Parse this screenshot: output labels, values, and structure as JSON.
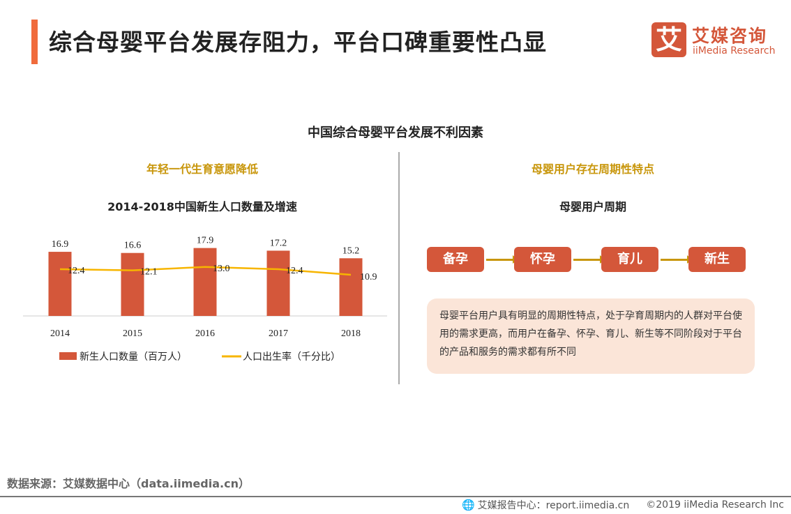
{
  "header": {
    "title": "综合母婴平台发展存阻力，平台口碑重要性凸显",
    "logo_glyph": "艾",
    "logo_cn": "艾媒咨询",
    "logo_en": "iiMedia Research",
    "accent_color": "#f06b3c"
  },
  "main_title": "中国综合母婴平台发展不利因素",
  "left": {
    "subtitle": "年轻一代生育意愿降低",
    "chart_title": "2014-2018中国新生人口数量及增速"
  },
  "right": {
    "subtitle": "母婴用户存在周期性特点",
    "cycle_title": "母婴用户周期",
    "steps": [
      "备孕",
      "怀孕",
      "育儿",
      "新生"
    ],
    "description": "母婴平台用户具有明显的周期性特点，处于孕育周期内的人群对平台使用的需求更高，而用户在备孕、怀孕、育儿、新生等不同阶段对于平台的产品和服务的需求都有所不同"
  },
  "chart_data": {
    "type": "bar+line",
    "categories": [
      "2014",
      "2015",
      "2016",
      "2017",
      "2018"
    ],
    "series": [
      {
        "name": "新生人口数量（百万人）",
        "type": "bar",
        "color": "#d4573a",
        "values": [
          16.9,
          16.6,
          17.9,
          17.2,
          15.2
        ]
      },
      {
        "name": "人口出生率（千分比）",
        "type": "line",
        "color": "#f7b500",
        "values": [
          12.4,
          12.1,
          13.0,
          12.4,
          10.9
        ]
      }
    ],
    "legend": "bottom",
    "grid": false
  },
  "footer": {
    "source": "数据来源：艾媒数据中心（data.iimedia.cn）",
    "report": "艾媒报告中心：report.iimedia.cn",
    "copyright": "©2019  iiMedia Research  Inc"
  }
}
